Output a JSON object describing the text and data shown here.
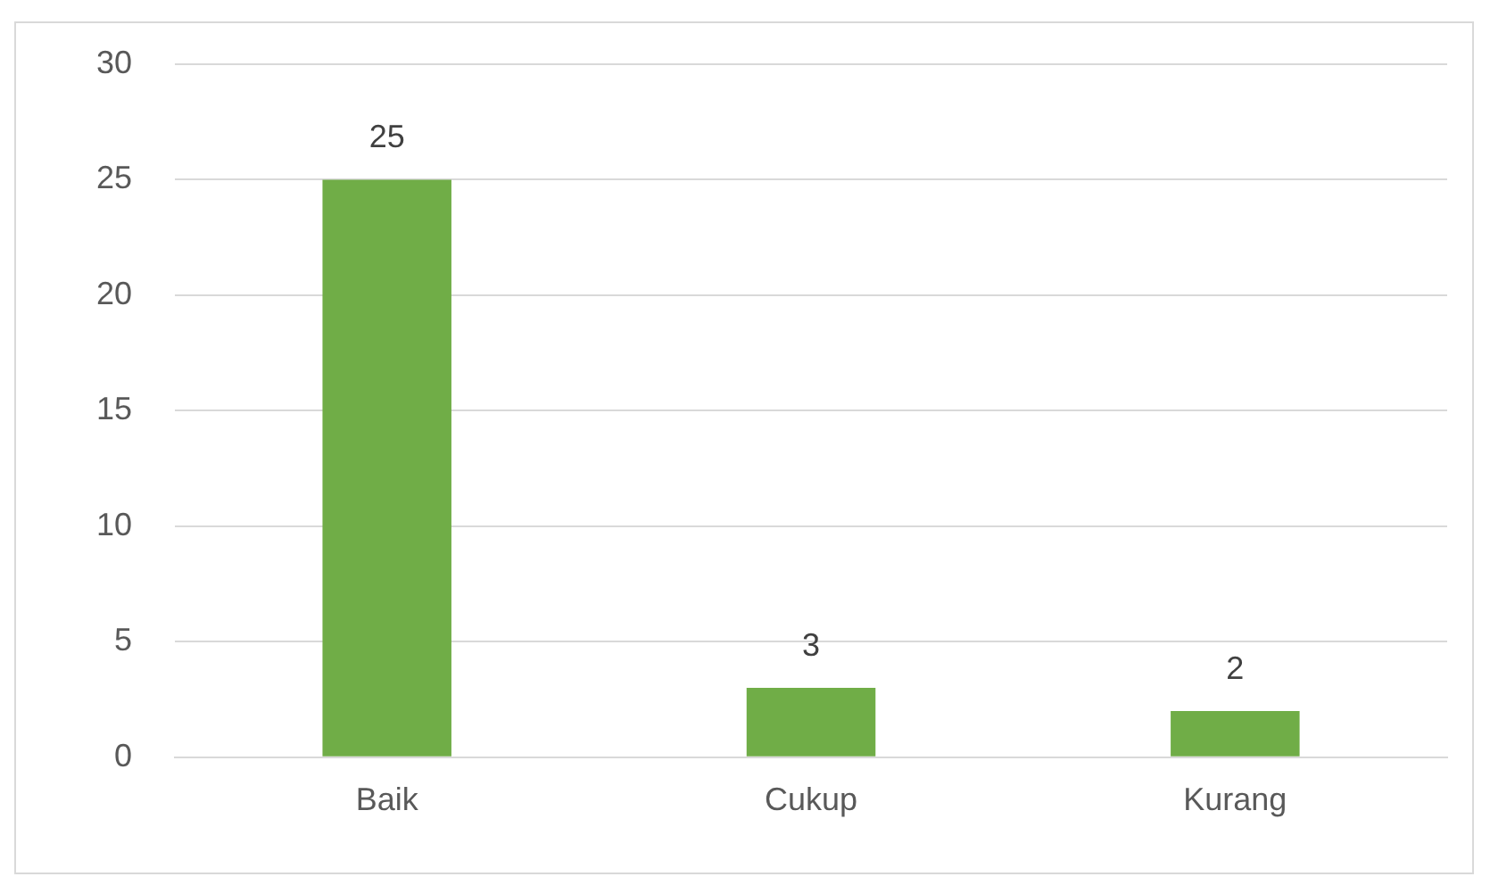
{
  "chart_data": {
    "type": "bar",
    "categories": [
      "Baik",
      "Cukup",
      "Kurang"
    ],
    "values": [
      25,
      3,
      2
    ],
    "color": "#70ad47",
    "ylim": [
      0,
      30
    ],
    "yticks": [
      0,
      5,
      10,
      15,
      20,
      25,
      30
    ],
    "grid": "y",
    "data_labels": true,
    "legend": false
  }
}
